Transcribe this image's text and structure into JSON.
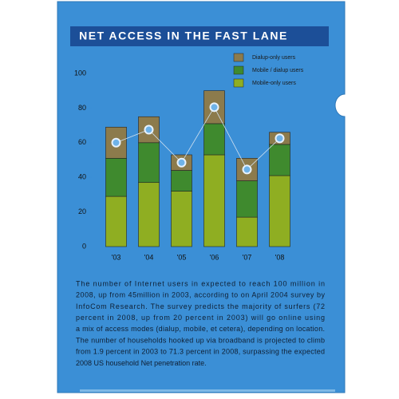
{
  "chart_data": {
    "type": "stacked-bar",
    "title": "NET ACCESS IN THE FAST LANE",
    "categories": [
      "'03",
      "'04",
      "'05",
      "'06",
      "'07",
      "'08"
    ],
    "series": [
      {
        "name": "Dialup-only users",
        "color": "#8c7b4c",
        "values": [
          18,
          15,
          9,
          19,
          13,
          7
        ]
      },
      {
        "name": "Mobile / dialup users",
        "color": "#3f8a2e",
        "values": [
          22,
          23,
          12,
          18,
          21,
          18
        ]
      },
      {
        "name": "Mobile-only users",
        "color": "#8fae22",
        "values": [
          29,
          37,
          32,
          53,
          17,
          41
        ]
      }
    ],
    "ylim": [
      0,
      100
    ],
    "yticks": [
      0,
      20,
      40,
      60,
      80,
      100
    ],
    "grid": false
  },
  "caption": [
    "The number of Internet users in expected to reach 100 million in",
    "2008, up from 45million in 2003, according to on April 2004 survey by",
    "InfoCom Research. The survey predicts the majority of surfers (72",
    "percent in 2008, up from 20 percent in 2003) will go online using",
    "a mix of access modes (dialup, mobile, et cetera), depending on location.",
    "The number of households hooked up via broadband is projected to climb",
    "from 1.9 percent in 2003 to 71.3 percent in 2008, surpassing the expected",
    "2008 US household Net penetration rate."
  ]
}
